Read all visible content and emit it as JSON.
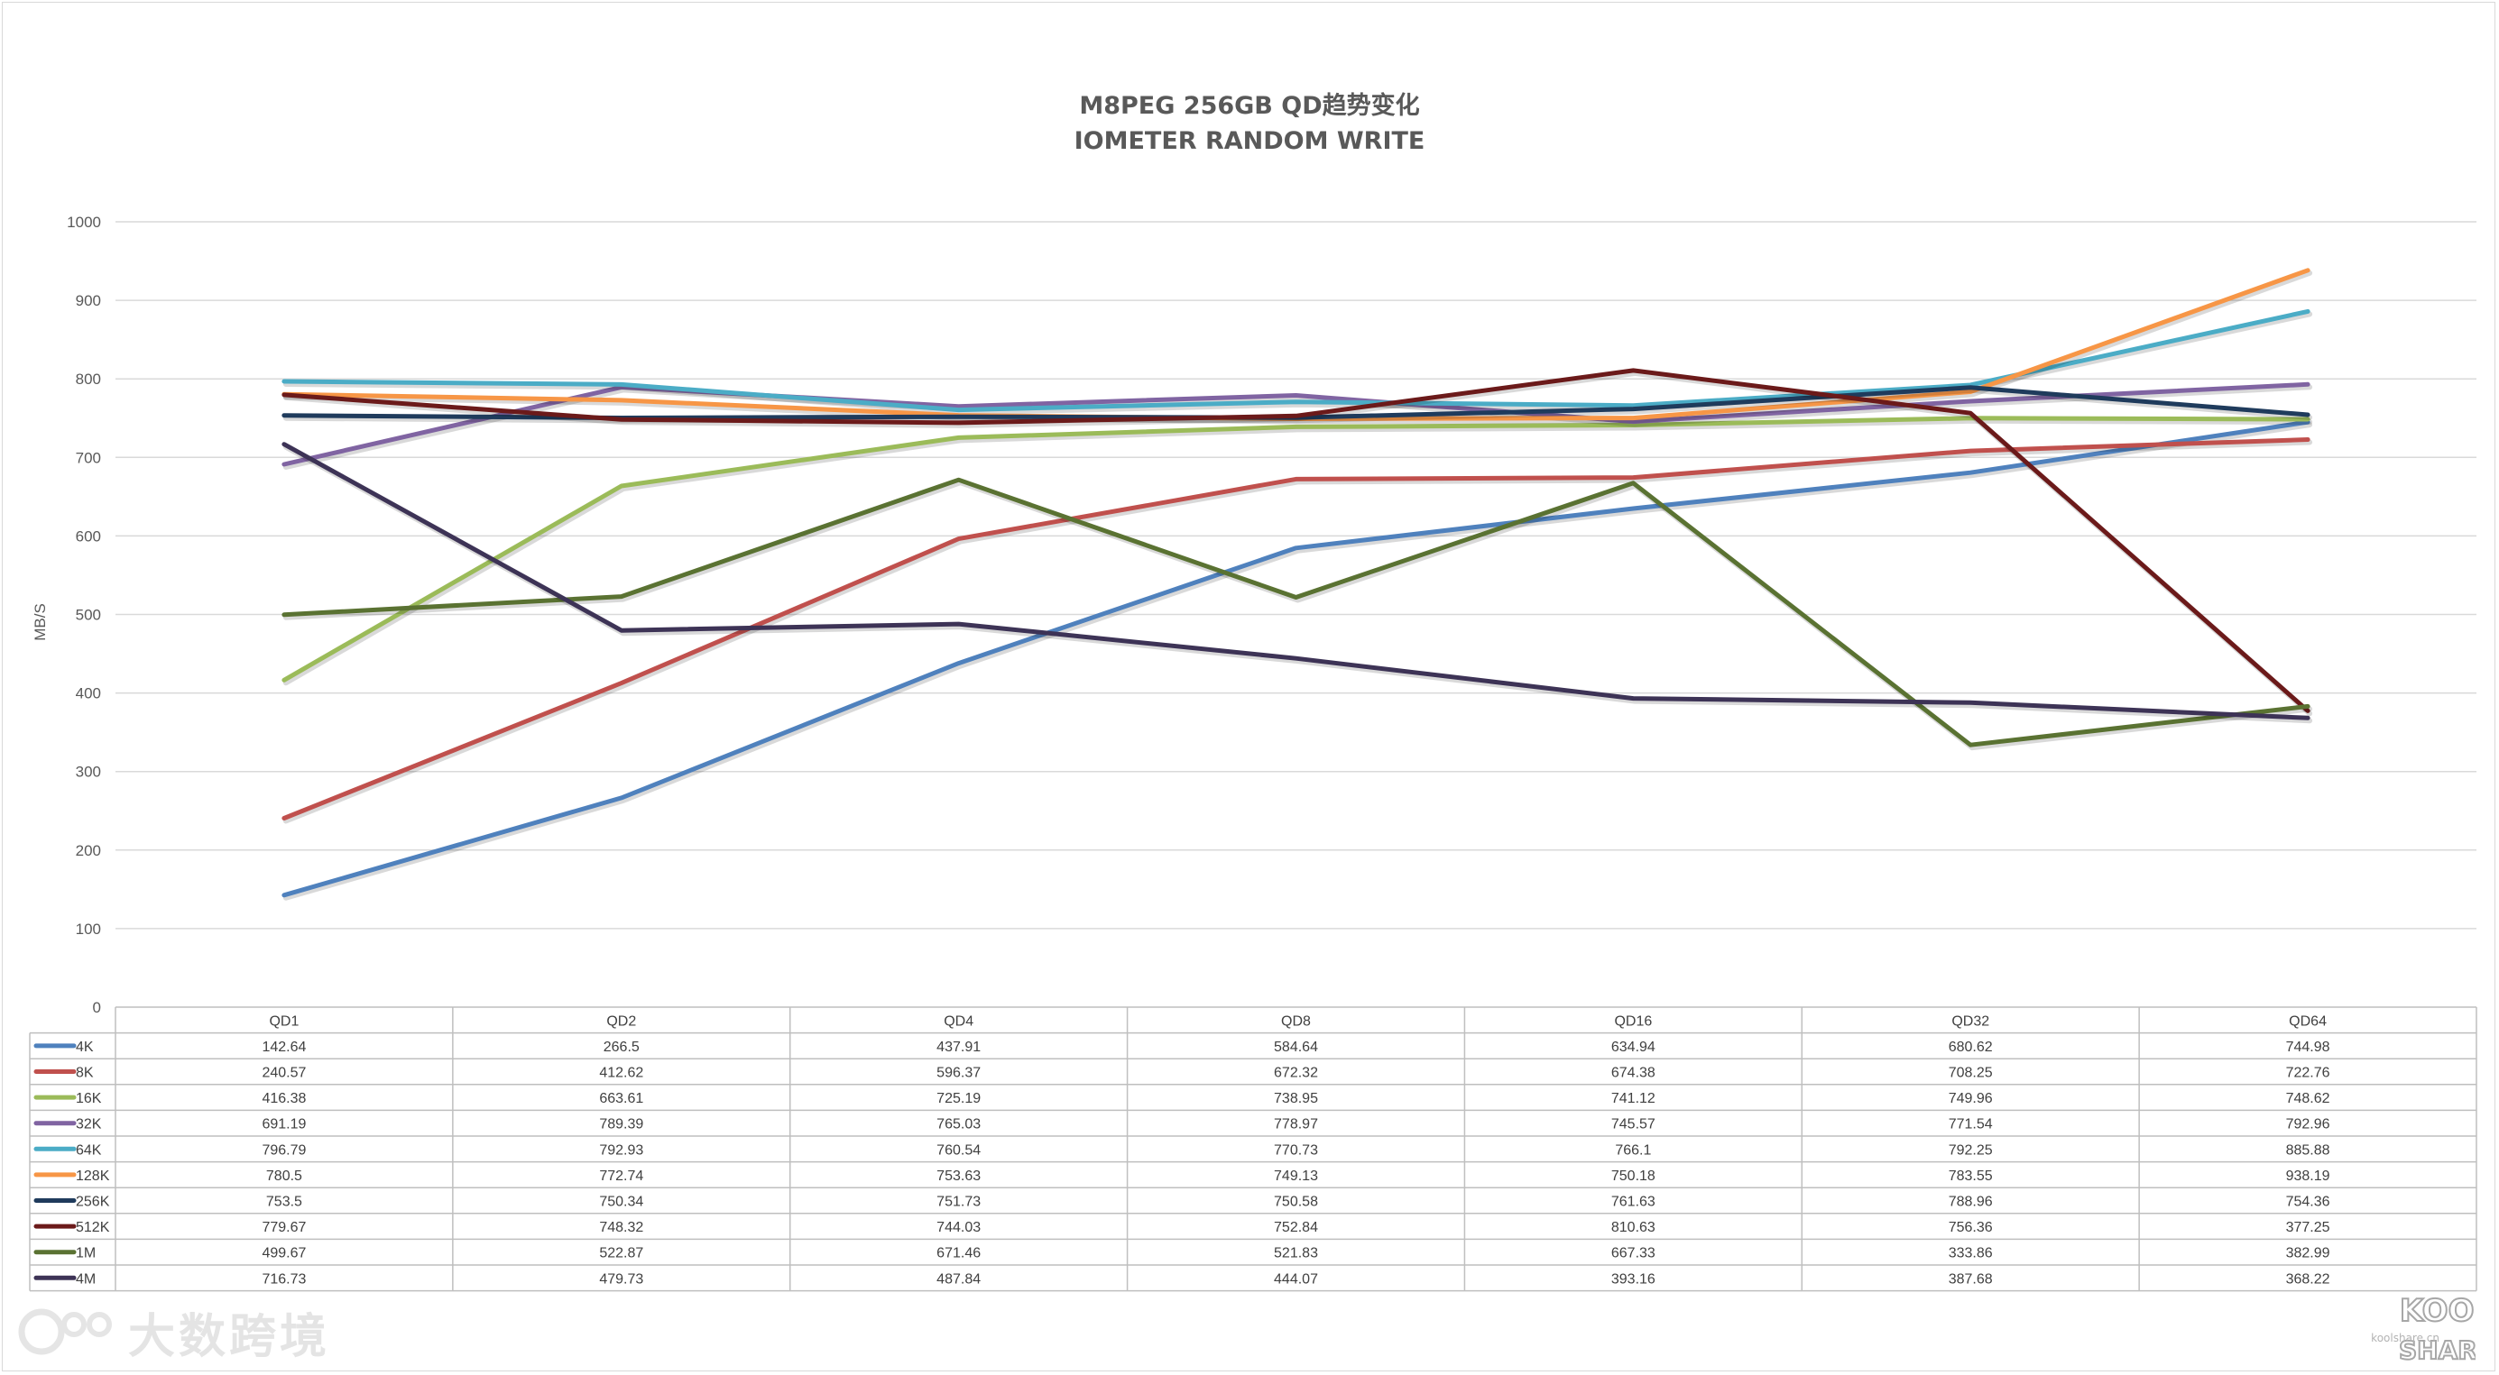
{
  "chart_data": {
    "type": "line",
    "title": "M8PEG 256GB QD趋势变化",
    "subtitle": "IOMETER RANDOM WRITE",
    "ylabel": "MB/S",
    "xlabel": "",
    "ylim": [
      0,
      1000
    ],
    "yticks": [
      0,
      100,
      200,
      300,
      400,
      500,
      600,
      700,
      800,
      900,
      1000
    ],
    "grid": true,
    "legend": "data-table",
    "categories": [
      "QD1",
      "QD2",
      "QD4",
      "QD8",
      "QD16",
      "QD32",
      "QD64"
    ],
    "series": [
      {
        "name": "4K",
        "color": "#4f81bd",
        "values": [
          142.64,
          266.5,
          437.91,
          584.64,
          634.94,
          680.62,
          744.98
        ]
      },
      {
        "name": "8K",
        "color": "#c0504d",
        "values": [
          240.57,
          412.62,
          596.37,
          672.32,
          674.38,
          708.25,
          722.76
        ]
      },
      {
        "name": "16K",
        "color": "#9bbb59",
        "values": [
          416.38,
          663.61,
          725.19,
          738.95,
          741.12,
          749.96,
          748.62
        ]
      },
      {
        "name": "32K",
        "color": "#8064a2",
        "values": [
          691.19,
          789.39,
          765.03,
          778.97,
          745.57,
          771.54,
          792.96
        ]
      },
      {
        "name": "64K",
        "color": "#4bacc6",
        "values": [
          796.79,
          792.93,
          760.54,
          770.73,
          766.1,
          792.25,
          885.88
        ]
      },
      {
        "name": "128K",
        "color": "#f79646",
        "values": [
          780.5,
          772.74,
          753.63,
          749.13,
          750.18,
          783.55,
          938.19
        ]
      },
      {
        "name": "256K",
        "color": "#1f3b5c",
        "values": [
          753.5,
          750.34,
          751.73,
          750.58,
          761.63,
          788.96,
          754.36
        ]
      },
      {
        "name": "512K",
        "color": "#6b1a1a",
        "values": [
          779.67,
          748.32,
          744.03,
          752.84,
          810.63,
          756.36,
          377.25
        ]
      },
      {
        "name": "1M",
        "color": "#5a7232",
        "values": [
          499.67,
          522.87,
          671.46,
          521.83,
          667.33,
          333.86,
          382.99
        ]
      },
      {
        "name": "4M",
        "color": "#3d3356",
        "values": [
          716.73,
          479.73,
          487.84,
          444.07,
          393.16,
          387.68,
          368.22
        ]
      }
    ],
    "table": {
      "header": [
        "QD1",
        "QD2",
        "QD4",
        "QD8",
        "QD16",
        "QD32",
        "QD64"
      ],
      "rows": [
        [
          "4K",
          "142.64",
          "266.5",
          "437.91",
          "584.64",
          "634.94",
          "680.62",
          "744.98"
        ],
        [
          "8K",
          "240.57",
          "412.62",
          "596.37",
          "672.32",
          "674.38",
          "708.25",
          "722.76"
        ],
        [
          "16K",
          "416.38",
          "663.61",
          "725.19",
          "738.95",
          "741.12",
          "749.96",
          "748.62"
        ],
        [
          "32K",
          "691.19",
          "789.39",
          "765.03",
          "778.97",
          "745.57",
          "771.54",
          "792.96"
        ],
        [
          "64K",
          "796.79",
          "792.93",
          "760.54",
          "770.73",
          "766.1",
          "792.25",
          "885.88"
        ],
        [
          "128K",
          "780.5",
          "772.74",
          "753.63",
          "749.13",
          "750.18",
          "783.55",
          "938.19"
        ],
        [
          "256K",
          "753.5",
          "750.34",
          "751.73",
          "750.58",
          "761.63",
          "788.96",
          "754.36"
        ],
        [
          "512K",
          "779.67",
          "748.32",
          "744.03",
          "752.84",
          "810.63",
          "756.36",
          "377.25"
        ],
        [
          "1M",
          "499.67",
          "522.87",
          "671.46",
          "521.83",
          "667.33",
          "333.86",
          "382.99"
        ],
        [
          "4M",
          "716.73",
          "479.73",
          "487.84",
          "444.07",
          "393.16",
          "387.68",
          "368.22"
        ]
      ]
    }
  },
  "watermarks": {
    "left_text": "大数跨境",
    "right_logo_top": "KOOL",
    "right_logo_bottom": "SHARE",
    "right_site": "koolshare.cn"
  }
}
